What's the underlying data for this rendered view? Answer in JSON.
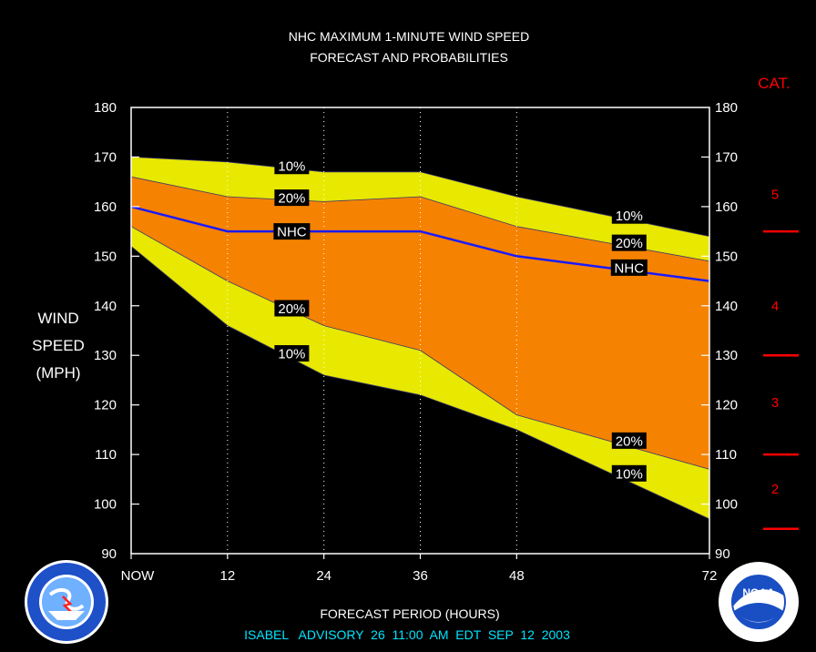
{
  "title_line1": "NHC MAXIMUM 1-MINUTE WIND SPEED",
  "title_line2": "FORECAST AND PROBABILITIES",
  "ylabel_lines": [
    "WIND",
    "SPEED",
    "(MPH)"
  ],
  "xlabel": "FORECAST PERIOD (HOURS)",
  "footer": "ISABEL   ADVISORY  26  11:00  AM  EDT  SEP  12  2003",
  "category_title": "CAT.",
  "categories": [
    {
      "label": "5",
      "y": 162.5
    },
    {
      "label": "4",
      "y": 140
    },
    {
      "label": "3",
      "y": 120.5
    },
    {
      "label": "2",
      "y": 103
    }
  ],
  "category_boundaries": [
    155,
    130,
    110,
    95
  ],
  "colors": {
    "outer": "#e8e800",
    "inner": "#f58200",
    "nhc": "#1a1aff",
    "category": "#ff0000",
    "footer": "#00e5ff"
  },
  "chart_data": {
    "type": "area",
    "xlabel": "FORECAST PERIOD (HOURS)",
    "ylabel": "WIND SPEED (MPH)",
    "x": [
      0,
      12,
      24,
      36,
      48,
      72
    ],
    "x_tick_labels": [
      "NOW",
      "12",
      "24",
      "36",
      "48",
      "72"
    ],
    "ylim": [
      90,
      180
    ],
    "yticks": [
      90,
      100,
      110,
      120,
      130,
      140,
      150,
      160,
      170,
      180
    ],
    "series": [
      {
        "name": "10%",
        "values": [
          170,
          169,
          167,
          167,
          162,
          154
        ]
      },
      {
        "name": "20%",
        "values": [
          166,
          162,
          161,
          162,
          156,
          149
        ]
      },
      {
        "name": "NHC",
        "values": [
          160,
          155,
          155,
          155,
          150,
          145
        ]
      },
      {
        "name": "20%",
        "values": [
          156,
          145,
          136,
          131,
          118,
          107
        ]
      },
      {
        "name": "10%",
        "values": [
          152,
          136,
          126,
          122,
          115,
          97
        ]
      }
    ],
    "series_labels": [
      {
        "text": "10%",
        "x": 20,
        "y": 168.2
      },
      {
        "text": "20%",
        "x": 20,
        "y": 161.8
      },
      {
        "text": "NHC",
        "x": 20,
        "y": 155
      },
      {
        "text": "20%",
        "x": 20,
        "y": 139.5
      },
      {
        "text": "10%",
        "x": 20,
        "y": 130.4
      },
      {
        "text": "10%",
        "x": 62,
        "y": 158.2
      },
      {
        "text": "20%",
        "x": 62,
        "y": 152.7
      },
      {
        "text": "NHC",
        "x": 62,
        "y": 147.7
      },
      {
        "text": "20%",
        "x": 62,
        "y": 112.8
      },
      {
        "text": "10%",
        "x": 62,
        "y": 106.2
      }
    ]
  }
}
